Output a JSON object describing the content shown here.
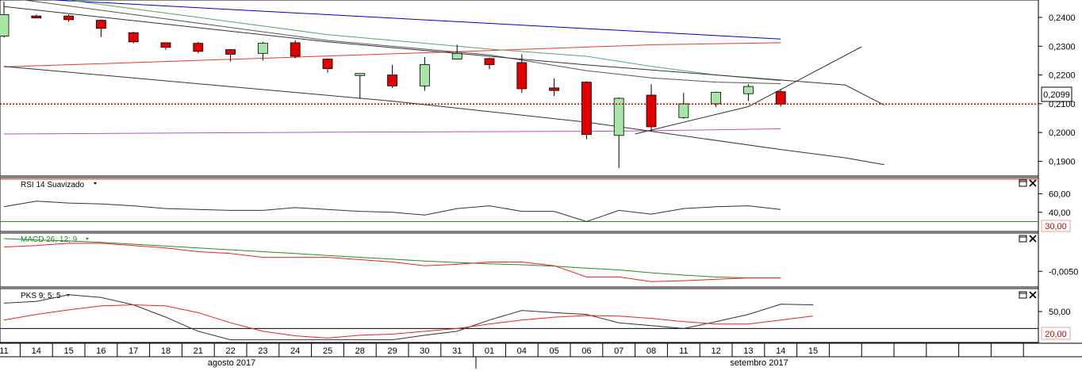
{
  "panes": {
    "price": {
      "label": "",
      "current_price": "0,2099"
    },
    "rsi": {
      "title": "RSI 14 Suavizado",
      "level_label": "30,00"
    },
    "macd": {
      "title": "MACD 26; 12; 9"
    },
    "pks": {
      "title": "PKS 9; 5; 5",
      "level_label": "20,00"
    }
  },
  "x_axis": {
    "days": [
      "11",
      "14",
      "15",
      "16",
      "17",
      "18",
      "21",
      "22",
      "23",
      "24",
      "25",
      "28",
      "29",
      "30",
      "31",
      "01",
      "04",
      "05",
      "06",
      "07",
      "08",
      "11",
      "12",
      "13",
      "14",
      "15"
    ],
    "months": [
      "agosto 2017",
      "setembro 2017"
    ]
  },
  "chart_data": [
    {
      "type": "candlestick",
      "title": "",
      "x": [
        "11",
        "14",
        "15",
        "16",
        "17",
        "18",
        "21",
        "22",
        "23",
        "24",
        "25",
        "28",
        "29",
        "30",
        "31",
        "01",
        "04",
        "05",
        "06",
        "07",
        "08",
        "11",
        "12",
        "13",
        "14",
        "15"
      ],
      "y_ticks": [
        "0,2400",
        "0,2300",
        "0,2200",
        "0,2100",
        "0,2000",
        "0,1900"
      ],
      "ylim": [
        0.186,
        0.2455
      ],
      "candles": [
        {
          "x": "11",
          "o": 0.2335,
          "h": 0.2455,
          "l": 0.233,
          "c": 0.241
        },
        {
          "x": "14",
          "o": 0.2405,
          "h": 0.241,
          "l": 0.2398,
          "c": 0.2398
        },
        {
          "x": "15",
          "o": 0.2405,
          "h": 0.241,
          "l": 0.2385,
          "c": 0.2392
        },
        {
          "x": "16",
          "o": 0.239,
          "h": 0.2392,
          "l": 0.2332,
          "c": 0.2362
        },
        {
          "x": "17",
          "o": 0.2347,
          "h": 0.235,
          "l": 0.231,
          "c": 0.2315
        },
        {
          "x": "18",
          "o": 0.2312,
          "h": 0.2312,
          "l": 0.2288,
          "c": 0.2296
        },
        {
          "x": "21",
          "o": 0.231,
          "h": 0.2315,
          "l": 0.2275,
          "c": 0.2282
        },
        {
          "x": "22",
          "o": 0.2288,
          "h": 0.229,
          "l": 0.2247,
          "c": 0.2272
        },
        {
          "x": "23",
          "o": 0.2275,
          "h": 0.2315,
          "l": 0.225,
          "c": 0.231
        },
        {
          "x": "24",
          "o": 0.2312,
          "h": 0.232,
          "l": 0.2258,
          "c": 0.2265
        },
        {
          "x": "25",
          "o": 0.2255,
          "h": 0.2258,
          "l": 0.2208,
          "c": 0.2222
        },
        {
          "x": "28",
          "o": 0.2198,
          "h": 0.2205,
          "l": 0.2117,
          "c": 0.2205
        },
        {
          "x": "29",
          "o": 0.22,
          "h": 0.2235,
          "l": 0.2155,
          "c": 0.2162
        },
        {
          "x": "30",
          "o": 0.2162,
          "h": 0.2262,
          "l": 0.2145,
          "c": 0.2236
        },
        {
          "x": "31",
          "o": 0.2255,
          "h": 0.2305,
          "l": 0.2258,
          "c": 0.2275
        },
        {
          "x": "01",
          "o": 0.2257,
          "h": 0.226,
          "l": 0.222,
          "c": 0.2236
        },
        {
          "x": "04",
          "o": 0.2243,
          "h": 0.2272,
          "l": 0.2138,
          "c": 0.2152
        },
        {
          "x": "05",
          "o": 0.2155,
          "h": 0.2188,
          "l": 0.2127,
          "c": 0.2146
        },
        {
          "x": "06",
          "o": 0.2175,
          "h": 0.2178,
          "l": 0.1977,
          "c": 0.1993
        },
        {
          "x": "07",
          "o": 0.199,
          "h": 0.2122,
          "l": 0.1877,
          "c": 0.2119
        },
        {
          "x": "08",
          "o": 0.213,
          "h": 0.2168,
          "l": 0.2005,
          "c": 0.202
        },
        {
          "x": "11",
          "o": 0.2052,
          "h": 0.2138,
          "l": 0.2048,
          "c": 0.21
        },
        {
          "x": "12",
          "o": 0.21,
          "h": 0.2142,
          "l": 0.2088,
          "c": 0.214
        },
        {
          "x": "13",
          "o": 0.2135,
          "h": 0.2168,
          "l": 0.211,
          "c": 0.216
        },
        {
          "x": "14",
          "o": 0.2142,
          "h": 0.215,
          "l": 0.209,
          "c": 0.2099
        }
      ],
      "current_price": 0.2099,
      "overlay_lines": [
        {
          "color": "#0000cc",
          "points": [
            [
              0,
              0.247
            ],
            [
              24,
              0.2325
            ]
          ]
        },
        {
          "color": "#ee3333",
          "points": [
            [
              0,
              0.2228
            ],
            [
              9,
              0.2262
            ],
            [
              15,
              0.2285
            ],
            [
              20,
              0.2305
            ],
            [
              24,
              0.2312
            ]
          ]
        },
        {
          "color": "#cc44cc",
          "points": [
            [
              0,
              0.1995
            ],
            [
              10,
              0.2001
            ],
            [
              19,
              0.2005
            ],
            [
              24,
              0.2013
            ]
          ]
        },
        {
          "color": "#5aa86a",
          "points": [
            [
              0,
              0.249
            ],
            [
              10,
              0.234
            ],
            [
              15,
              0.229
            ],
            [
              18,
              0.2265
            ],
            [
              20,
              0.223
            ],
            [
              22,
              0.22
            ],
            [
              24,
              0.218
            ]
          ]
        },
        {
          "color": "#555555",
          "points": [
            [
              0,
              0.247
            ],
            [
              10,
              0.232
            ],
            [
              15,
              0.227
            ],
            [
              18,
              0.2215
            ],
            [
              20,
              0.219
            ],
            [
              22,
              0.2175
            ],
            [
              24,
              0.217
            ]
          ]
        },
        {
          "color": "#333333",
          "points": [
            [
              0,
              0.223
            ],
            [
              12,
              0.2109
            ],
            [
              18,
              0.2036
            ],
            [
              24,
              0.1941
            ],
            [
              26,
              0.1912
            ],
            [
              27.2,
              0.1888
            ]
          ]
        },
        {
          "color": "#333333",
          "points": [
            [
              0,
              0.2438
            ],
            [
              10,
              0.2315
            ],
            [
              18,
              0.2235
            ],
            [
              26,
              0.2165
            ],
            [
              27.2,
              0.2095
            ]
          ]
        },
        {
          "color": "#333333",
          "points": [
            [
              19.5,
              0.1995
            ],
            [
              23,
              0.209
            ],
            [
              26.5,
              0.2298
            ]
          ]
        }
      ]
    },
    {
      "type": "line",
      "title": "RSI 14 Suavizado",
      "y_ticks": [
        "60,00",
        "40,00"
      ],
      "ylim": [
        21,
        74
      ],
      "level": 30,
      "series": [
        {
          "color": "#333333",
          "values": [
            46,
            52,
            50,
            49,
            47,
            44,
            43,
            42,
            42,
            45,
            43,
            41,
            40,
            37,
            44,
            47,
            41,
            41,
            30,
            42,
            38,
            44,
            46,
            47,
            43
          ]
        }
      ]
    },
    {
      "type": "line",
      "title": "MACD 26; 12; 9",
      "y_ticks": [
        "-0,0050"
      ],
      "ylim": [
        -0.008,
        0.0025
      ],
      "series": [
        {
          "color": "#2a8a2a",
          "values": [
            0.002,
            0.0017,
            0.0015,
            0.0012,
            0.0008,
            0.0004,
            0.0,
            -0.0004,
            -0.0008,
            -0.0012,
            -0.0016,
            -0.002,
            -0.0024,
            -0.0028,
            -0.0031,
            -0.0034,
            -0.0036,
            -0.0039,
            -0.0043,
            -0.0047,
            -0.0053,
            -0.0058,
            -0.0062,
            -0.0064,
            -0.0064
          ]
        },
        {
          "color": "#ee2222",
          "values": [
            0.0002,
            0.0005,
            0.001,
            0.001,
            0.0005,
            0.0,
            -0.0008,
            -0.0012,
            -0.002,
            -0.002,
            -0.002,
            -0.0025,
            -0.003,
            -0.0038,
            -0.0035,
            -0.003,
            -0.003,
            -0.0038,
            -0.0062,
            -0.0062,
            -0.0072,
            -0.007,
            -0.0067,
            -0.0064,
            -0.0064
          ]
        }
      ]
    },
    {
      "type": "line",
      "title": "PKS 9; 5; 5",
      "y_ticks": [
        "50,00"
      ],
      "ylim": [
        -2,
        88
      ],
      "level": 20,
      "series": [
        {
          "color": "#333333",
          "values": [
            65,
            68,
            80,
            75,
            62,
            40,
            15,
            0,
            0,
            0,
            0,
            0,
            0,
            8,
            15,
            35,
            52,
            48,
            45,
            30,
            25,
            20,
            32,
            45,
            63,
            62
          ]
        },
        {
          "color": "#ee2222",
          "values": [
            35,
            45,
            53,
            60,
            62,
            60,
            48,
            30,
            15,
            7,
            3,
            8,
            10,
            15,
            20,
            28,
            35,
            40,
            43,
            42,
            38,
            32,
            28,
            28,
            35,
            42
          ]
        }
      ]
    }
  ]
}
